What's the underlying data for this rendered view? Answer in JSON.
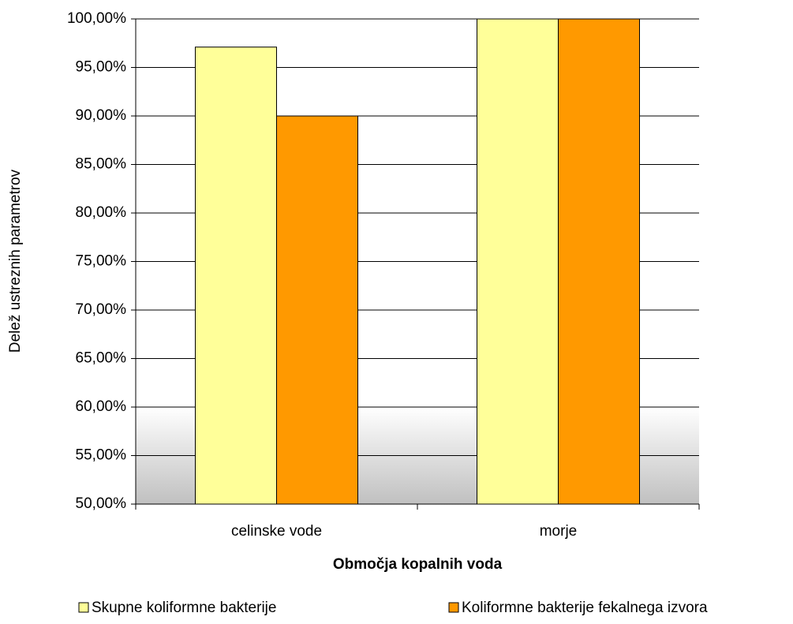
{
  "chart_data": {
    "type": "bar",
    "x_label": "Območja kopalnih voda",
    "y_label": "Delež ustreznih parametrov",
    "categories": [
      "celinske vode",
      "morje"
    ],
    "series": [
      {
        "name": "Skupne koliformne bakterije",
        "color": "#ffff99",
        "values": [
          97.1,
          100
        ]
      },
      {
        "name": "Koliformne bakterije fekalnega izvora",
        "color": "#ff9900",
        "values": [
          90,
          100
        ]
      }
    ],
    "ylim": [
      50,
      100
    ],
    "yticks": [
      {
        "value": 50,
        "label": "50,00%"
      },
      {
        "value": 55,
        "label": "55,00%"
      },
      {
        "value": 60,
        "label": "60,00%"
      },
      {
        "value": 65,
        "label": "65,00%"
      },
      {
        "value": 70,
        "label": "70,00%"
      },
      {
        "value": 75,
        "label": "75,00%"
      },
      {
        "value": 80,
        "label": "80,00%"
      },
      {
        "value": 85,
        "label": "85,00%"
      },
      {
        "value": 90,
        "label": "90,00%"
      },
      {
        "value": 95,
        "label": "95,00%"
      },
      {
        "value": 100,
        "label": "100,00%"
      }
    ],
    "grid": true
  }
}
